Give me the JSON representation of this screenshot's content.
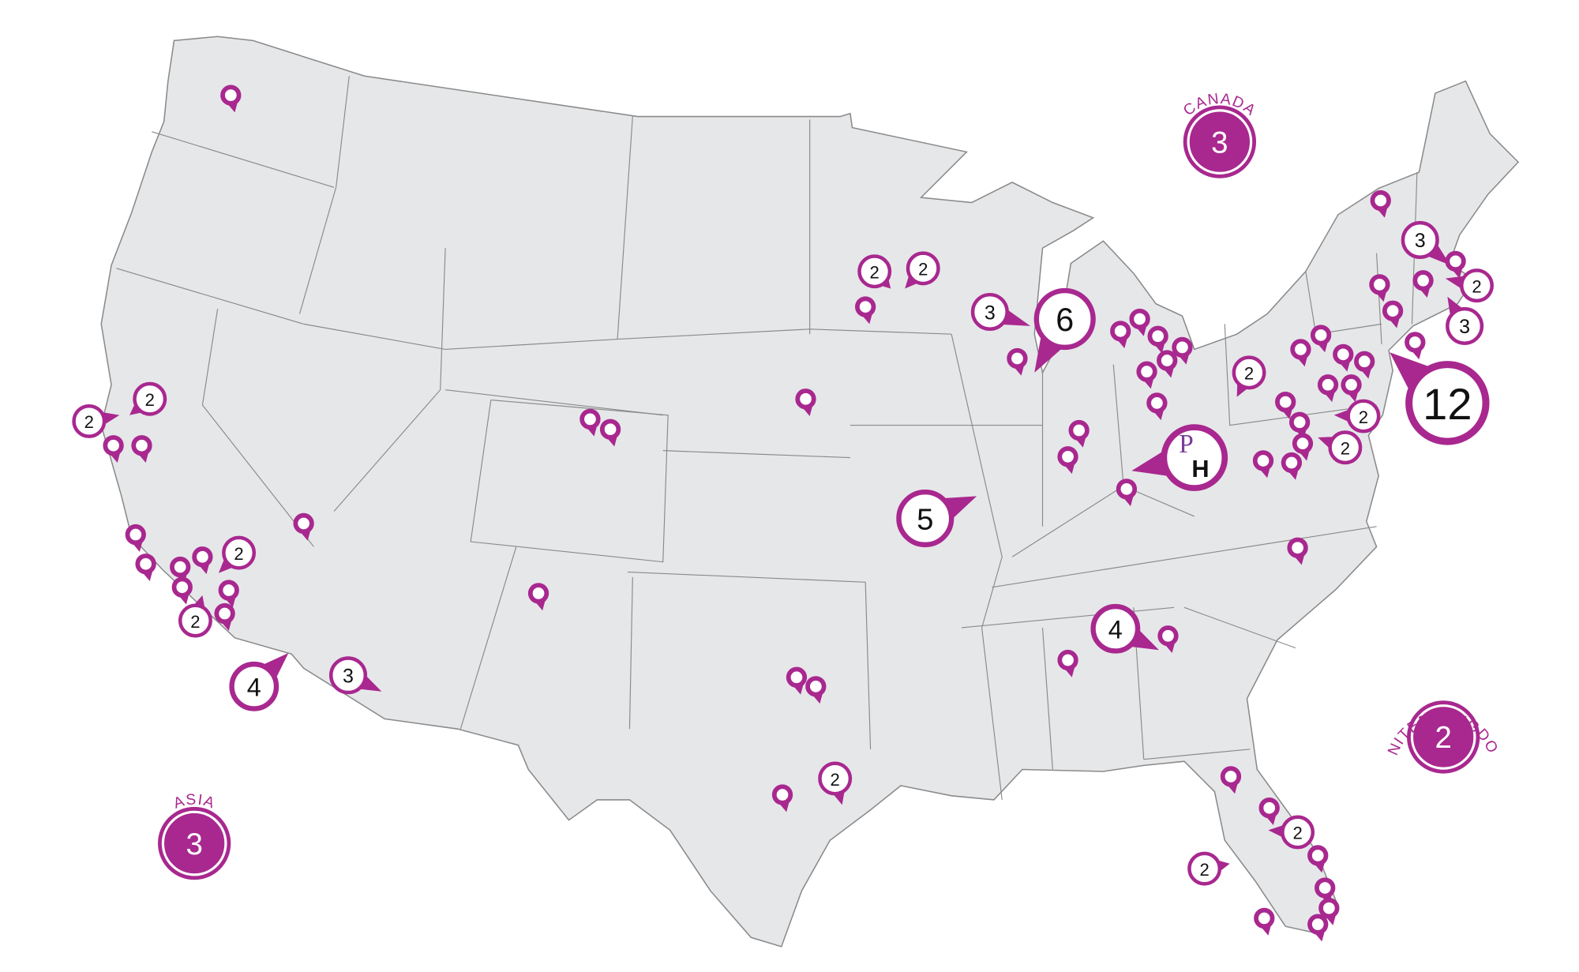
{
  "colors": {
    "accent": "#a8288f",
    "land": "#e6e7e9",
    "border": "#8a8a8a",
    "logo_p": "#7b3a9c",
    "logo_h": "#111111"
  },
  "logo": {
    "p": "P",
    "h": "H"
  },
  "regions": [
    {
      "name": "CANADA",
      "count": "3"
    },
    {
      "name": "UNITED KINGDOM",
      "count": "2"
    },
    {
      "name": "ASIA",
      "count": "3"
    }
  ],
  "count_markers": [
    {
      "area": "northern-california",
      "count": "2"
    },
    {
      "area": "northern-california",
      "count": "2"
    },
    {
      "area": "southern-california",
      "count": "2"
    },
    {
      "area": "southern-california",
      "count": "2"
    },
    {
      "area": "san-diego",
      "count": "4"
    },
    {
      "area": "arizona",
      "count": "3"
    },
    {
      "area": "minnesota",
      "count": "2"
    },
    {
      "area": "minnesota",
      "count": "2"
    },
    {
      "area": "wisconsin",
      "count": "3"
    },
    {
      "area": "chicago",
      "count": "6"
    },
    {
      "area": "missouri",
      "count": "5"
    },
    {
      "area": "georgia",
      "count": "4"
    },
    {
      "area": "pennsylvania",
      "count": "2"
    },
    {
      "area": "mid-atlantic",
      "count": "2"
    },
    {
      "area": "mid-atlantic",
      "count": "2"
    },
    {
      "area": "new-york",
      "count": "12"
    },
    {
      "area": "new-england",
      "count": "3"
    },
    {
      "area": "new-england",
      "count": "2"
    },
    {
      "area": "new-england",
      "count": "3"
    },
    {
      "area": "texas",
      "count": "2"
    },
    {
      "area": "florida",
      "count": "2"
    },
    {
      "area": "florida",
      "count": "2"
    }
  ],
  "headquarters_icon": "ph-logo-marker",
  "single_pin_icon": "location-pin-icon"
}
